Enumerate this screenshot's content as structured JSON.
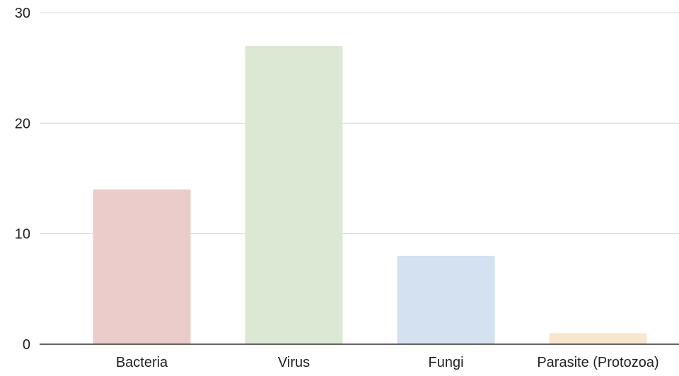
{
  "chart_data": {
    "type": "bar",
    "title": "",
    "xlabel": "",
    "ylabel": "",
    "categories": [
      "Bacteria",
      "Virus",
      "Fungi",
      "Parasite (Protozoa)"
    ],
    "values": [
      14,
      27,
      8,
      1
    ],
    "bar_colors": [
      "#ecccca",
      "#dde8d4",
      "#d3e1f1",
      "#f8e6cf"
    ],
    "ylim": [
      0,
      30
    ],
    "yticks": [
      0,
      10,
      20,
      30
    ],
    "grid": true,
    "legend": "none",
    "gridline_color": "#d9d9d9",
    "axis_color": "#333333"
  }
}
